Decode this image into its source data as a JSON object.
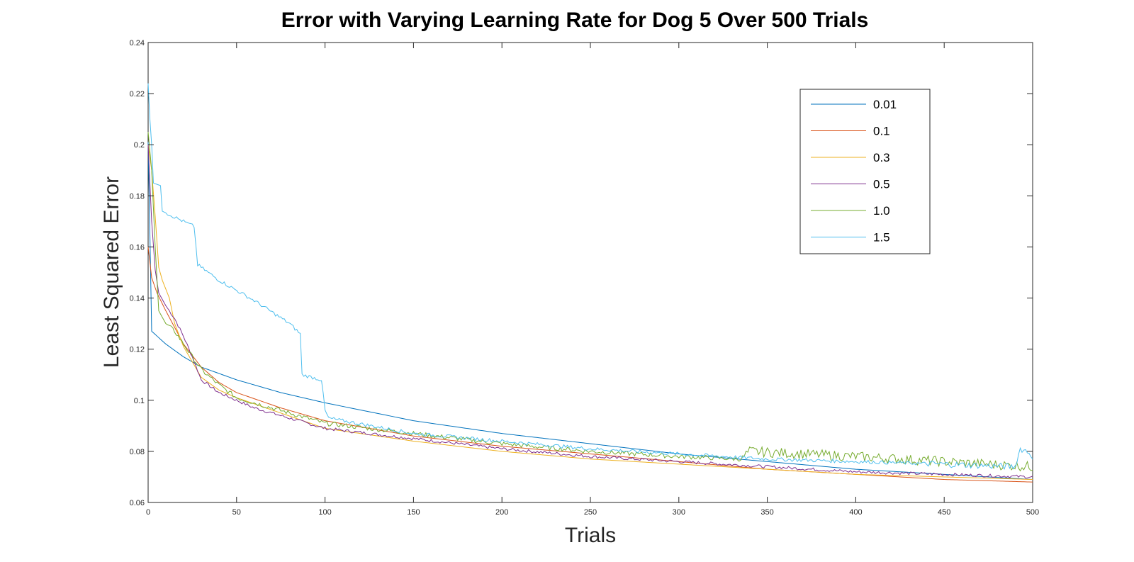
{
  "chart_data": {
    "type": "line",
    "title": "Error with Varying Learning Rate for Dog 5 Over 500 Trials",
    "xlabel": "Trials",
    "ylabel": "Least Squared Error",
    "xlim": [
      0,
      500
    ],
    "ylim": [
      0.06,
      0.24
    ],
    "xticks": [
      0,
      50,
      100,
      150,
      200,
      250,
      300,
      350,
      400,
      450,
      500
    ],
    "yticks": [
      0.06,
      0.08,
      0.1,
      0.12,
      0.14,
      0.16,
      0.18,
      0.2,
      0.22,
      0.24
    ],
    "xtick_labels": [
      "0",
      "50",
      "100",
      "150",
      "200",
      "250",
      "300",
      "350",
      "400",
      "450",
      "500"
    ],
    "ytick_labels": [
      "0.06",
      "0.08",
      "0.1",
      "0.12",
      "0.14",
      "0.16",
      "0.18",
      "0.2",
      "0.22",
      "0.24"
    ],
    "grid": false,
    "legend_position": "top-right",
    "series": [
      {
        "name": "0.01",
        "color": "#0072BD",
        "noise": 0,
        "points": [
          [
            0,
            0.201
          ],
          [
            1,
            0.165
          ],
          [
            2,
            0.127
          ],
          [
            10,
            0.122
          ],
          [
            20,
            0.117
          ],
          [
            30,
            0.113
          ],
          [
            50,
            0.108
          ],
          [
            75,
            0.103
          ],
          [
            100,
            0.099
          ],
          [
            150,
            0.092
          ],
          [
            200,
            0.087
          ],
          [
            250,
            0.083
          ],
          [
            300,
            0.079
          ],
          [
            350,
            0.076
          ],
          [
            400,
            0.073
          ],
          [
            450,
            0.071
          ],
          [
            500,
            0.069
          ]
        ]
      },
      {
        "name": "0.1",
        "color": "#D95319",
        "noise": 0,
        "points": [
          [
            0,
            0.16
          ],
          [
            2,
            0.148
          ],
          [
            5,
            0.142
          ],
          [
            10,
            0.135
          ],
          [
            20,
            0.122
          ],
          [
            30,
            0.113
          ],
          [
            40,
            0.107
          ],
          [
            50,
            0.103
          ],
          [
            75,
            0.097
          ],
          [
            100,
            0.092
          ],
          [
            150,
            0.086
          ],
          [
            200,
            0.082
          ],
          [
            250,
            0.079
          ],
          [
            300,
            0.076
          ],
          [
            350,
            0.073
          ],
          [
            400,
            0.071
          ],
          [
            450,
            0.069
          ],
          [
            500,
            0.068
          ]
        ]
      },
      {
        "name": "0.3",
        "color": "#EDB120",
        "noise": 0,
        "points": [
          [
            0,
            0.2
          ],
          [
            2,
            0.19
          ],
          [
            4,
            0.172
          ],
          [
            6,
            0.152
          ],
          [
            8,
            0.147
          ],
          [
            12,
            0.14
          ],
          [
            15,
            0.13
          ],
          [
            20,
            0.121
          ],
          [
            25,
            0.115
          ],
          [
            30,
            0.109
          ],
          [
            40,
            0.104
          ],
          [
            50,
            0.101
          ],
          [
            75,
            0.095
          ],
          [
            100,
            0.089
          ],
          [
            150,
            0.084
          ],
          [
            200,
            0.08
          ],
          [
            250,
            0.077
          ],
          [
            300,
            0.075
          ],
          [
            350,
            0.073
          ],
          [
            400,
            0.071
          ],
          [
            450,
            0.07
          ],
          [
            500,
            0.069
          ]
        ]
      },
      {
        "name": "0.5",
        "color": "#7E2F8E",
        "noise": 0.0006,
        "points": [
          [
            0,
            0.2
          ],
          [
            2,
            0.17
          ],
          [
            4,
            0.151
          ],
          [
            6,
            0.142
          ],
          [
            10,
            0.137
          ],
          [
            15,
            0.132
          ],
          [
            20,
            0.125
          ],
          [
            25,
            0.117
          ],
          [
            30,
            0.108
          ],
          [
            40,
            0.103
          ],
          [
            50,
            0.1
          ],
          [
            60,
            0.097
          ],
          [
            80,
            0.093
          ],
          [
            100,
            0.089
          ],
          [
            150,
            0.085
          ],
          [
            200,
            0.081
          ],
          [
            250,
            0.078
          ],
          [
            300,
            0.076
          ],
          [
            350,
            0.074
          ],
          [
            400,
            0.072
          ],
          [
            450,
            0.071
          ],
          [
            500,
            0.07
          ]
        ]
      },
      {
        "name": "1.0",
        "color": "#77AC30",
        "noise": 0.0009,
        "points": [
          [
            0,
            0.205
          ],
          [
            2,
            0.19
          ],
          [
            4,
            0.16
          ],
          [
            6,
            0.135
          ],
          [
            10,
            0.13
          ],
          [
            15,
            0.127
          ],
          [
            20,
            0.122
          ],
          [
            25,
            0.117
          ],
          [
            30,
            0.112
          ],
          [
            40,
            0.106
          ],
          [
            50,
            0.101
          ],
          [
            75,
            0.096
          ],
          [
            100,
            0.091
          ],
          [
            150,
            0.087
          ],
          [
            200,
            0.083
          ],
          [
            250,
            0.08
          ],
          [
            300,
            0.078
          ],
          [
            335,
            0.077
          ],
          [
            340,
            0.08
          ],
          [
            400,
            0.078
          ],
          [
            450,
            0.076
          ],
          [
            500,
            0.074
          ]
        ]
      },
      {
        "name": "1.5",
        "color": "#4DBEEE",
        "noise": 0.0007,
        "points": [
          [
            0,
            0.224
          ],
          [
            1,
            0.21
          ],
          [
            2,
            0.2
          ],
          [
            3,
            0.185
          ],
          [
            7,
            0.184
          ],
          [
            8,
            0.174
          ],
          [
            26,
            0.168
          ],
          [
            28,
            0.153
          ],
          [
            40,
            0.147
          ],
          [
            60,
            0.139
          ],
          [
            80,
            0.13
          ],
          [
            86,
            0.126
          ],
          [
            87,
            0.11
          ],
          [
            98,
            0.108
          ],
          [
            100,
            0.096
          ],
          [
            102,
            0.093
          ],
          [
            150,
            0.087
          ],
          [
            200,
            0.084
          ],
          [
            250,
            0.081
          ],
          [
            300,
            0.079
          ],
          [
            350,
            0.077
          ],
          [
            400,
            0.076
          ],
          [
            450,
            0.075
          ],
          [
            490,
            0.074
          ],
          [
            493,
            0.081
          ],
          [
            497,
            0.08
          ],
          [
            500,
            0.078
          ]
        ]
      }
    ]
  }
}
